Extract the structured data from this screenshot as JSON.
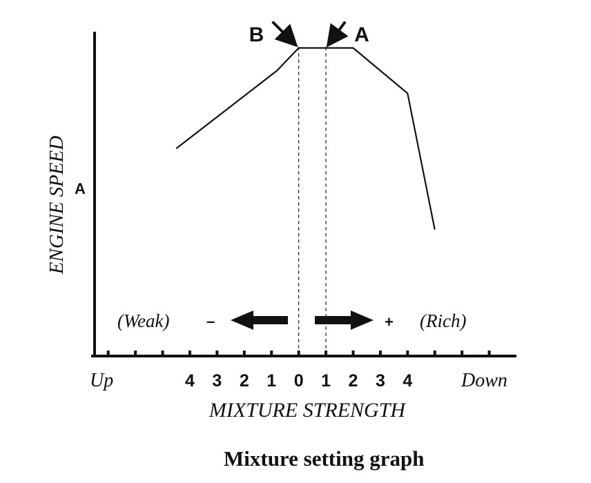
{
  "chart_data": {
    "type": "line",
    "title": "Mixture setting graph",
    "xlabel": "MIXTURE STRENGTH",
    "ylabel": "ENGINE SPEED",
    "y_marker": "A",
    "x_end_labels": {
      "left": "Up",
      "right": "Down"
    },
    "x_tick_labels": [
      "4",
      "3",
      "2",
      "1",
      "0",
      "1",
      "2",
      "3",
      "4"
    ],
    "x_tick_values": [
      -4,
      -3,
      -2,
      -1,
      0,
      1,
      2,
      3,
      4
    ],
    "xlim": [
      -7.5,
      8
    ],
    "ylim": [
      0,
      100
    ],
    "grid": false,
    "series": [
      {
        "x": [
          -4.5,
          -0.8,
          0,
          1,
          2,
          4,
          5
        ],
        "y": [
          64,
          88,
          95,
          95,
          95,
          81,
          39
        ]
      }
    ],
    "reference_lines": [
      {
        "label": "B",
        "x": 0
      },
      {
        "label": "A",
        "x": 1
      }
    ],
    "annotations": {
      "weak_label": "(Weak)",
      "weak_sign": "–",
      "rich_label": "(Rich)",
      "rich_sign": "+"
    }
  }
}
